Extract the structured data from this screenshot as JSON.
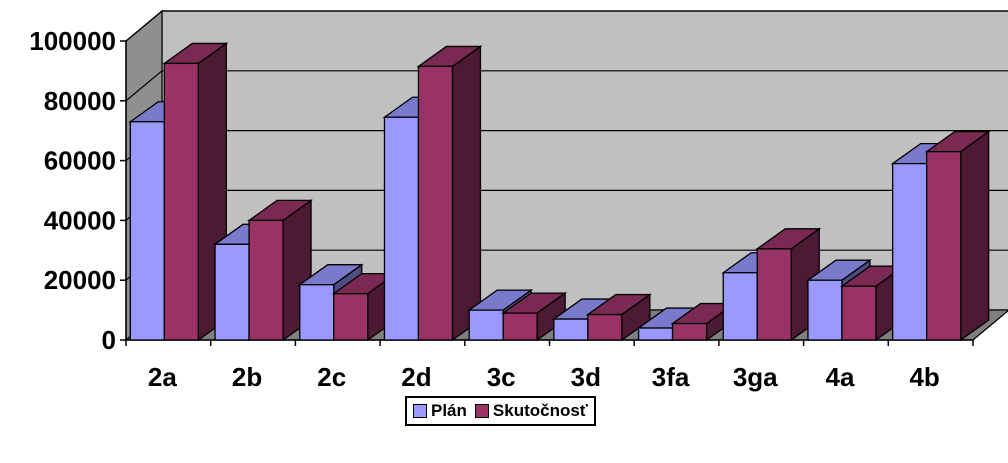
{
  "chart_data": {
    "type": "bar",
    "categories": [
      "2a",
      "2b",
      "2c",
      "2d",
      "3c",
      "3d",
      "3fa",
      "3ga",
      "4a",
      "4b"
    ],
    "series": [
      {
        "name": "Plán",
        "color": "#9999FF",
        "values": [
          73000,
          32000,
          18500,
          74500,
          10000,
          7000,
          4000,
          22500,
          20000,
          59000
        ]
      },
      {
        "name": "Skutočnosť",
        "color": "#993366",
        "values": [
          92500,
          40000,
          15500,
          91500,
          9000,
          8500,
          5500,
          30500,
          18000,
          63000
        ]
      }
    ],
    "ylim": [
      0,
      100000
    ],
    "yticks": [
      "0",
      "20000",
      "40000",
      "60000",
      "80000",
      "100000"
    ],
    "grid": true,
    "three_d": true,
    "wall_color": "#C0C0C0",
    "legend_position": "bottom",
    "title": "",
    "xlabel": "",
    "ylabel": ""
  }
}
